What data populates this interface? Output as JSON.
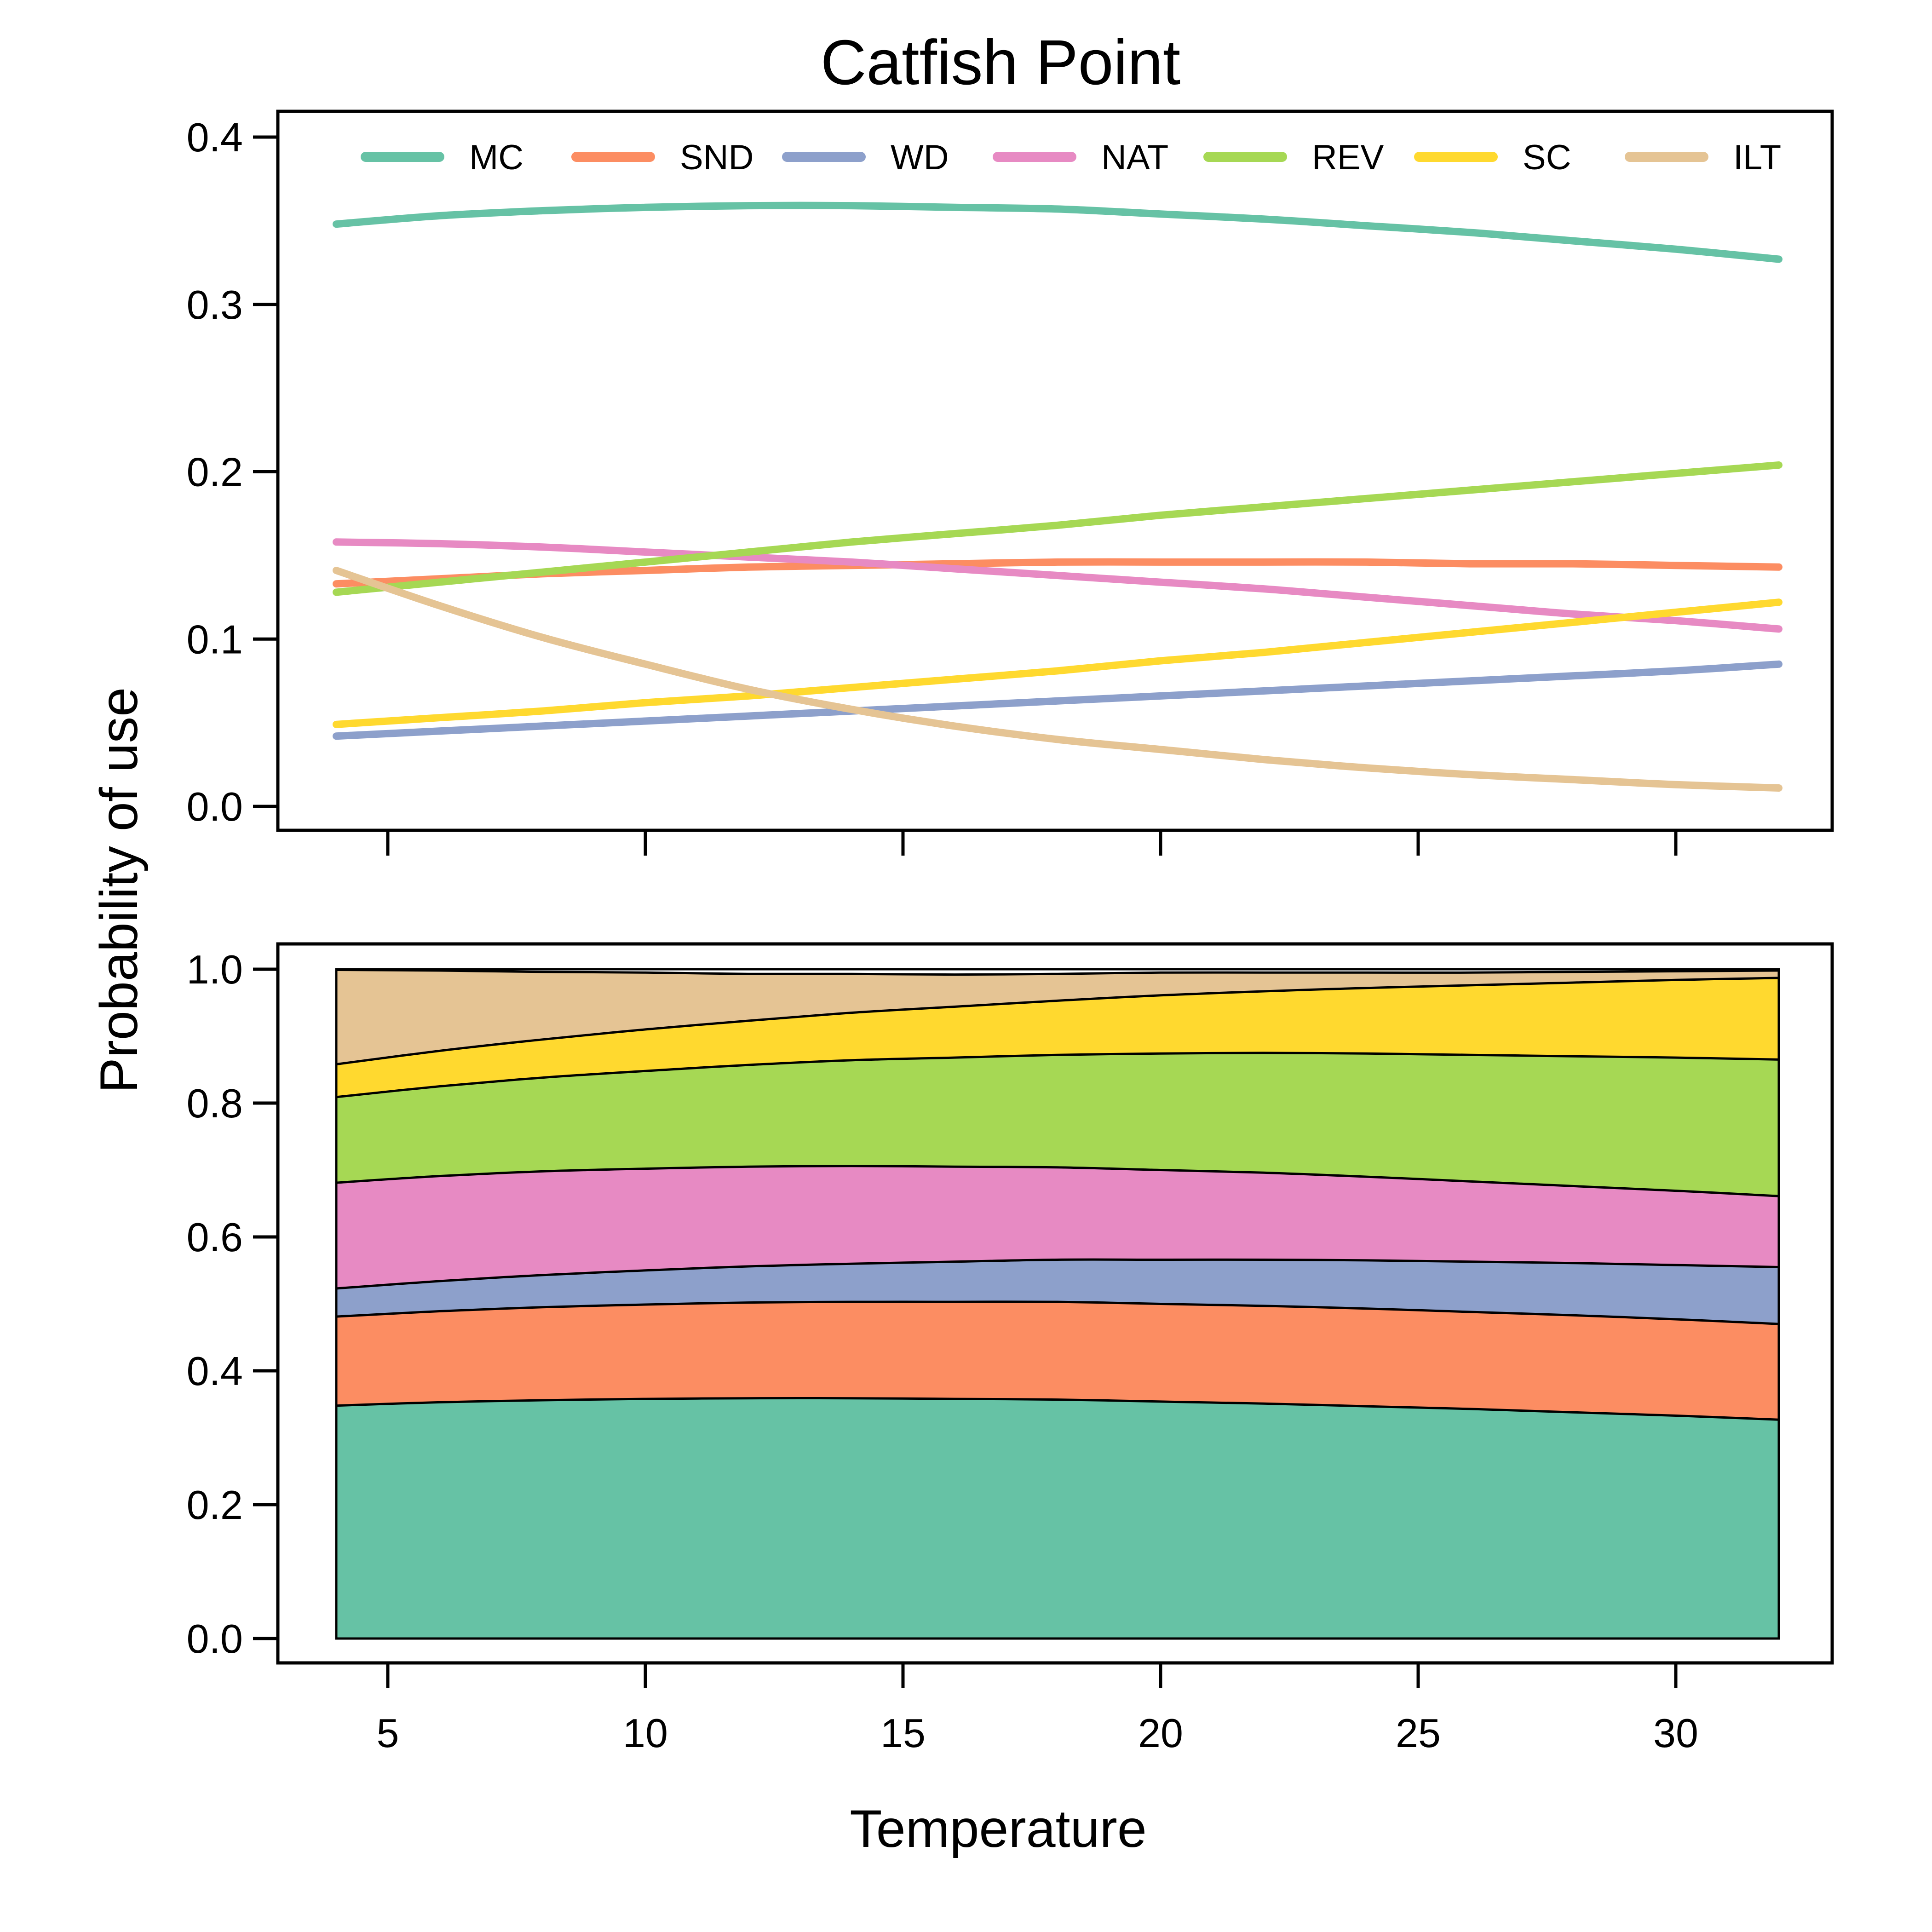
{
  "chart_data": {
    "type": "line",
    "title": "Catfish Point",
    "xlabel": "Temperature",
    "ylabel": "Probability of use",
    "x_ticks": [
      5,
      10,
      15,
      20,
      25,
      30
    ],
    "x": [
      4,
      6,
      8,
      10,
      12,
      14,
      16,
      18,
      20,
      22,
      24,
      26,
      28,
      30,
      32
    ],
    "legend_placement": "top",
    "series": [
      {
        "name": "MC",
        "color": "#66C2A5",
        "values": [
          0.348,
          0.353,
          0.356,
          0.358,
          0.359,
          0.359,
          0.358,
          0.357,
          0.354,
          0.351,
          0.347,
          0.343,
          0.338,
          0.333,
          0.327
        ]
      },
      {
        "name": "SND",
        "color": "#FC8D62",
        "values": [
          0.133,
          0.136,
          0.139,
          0.141,
          0.143,
          0.144,
          0.145,
          0.146,
          0.146,
          0.146,
          0.146,
          0.145,
          0.145,
          0.144,
          0.143
        ]
      },
      {
        "name": "WD",
        "color": "#8DA0CB",
        "values": [
          0.042,
          0.045,
          0.048,
          0.051,
          0.054,
          0.057,
          0.06,
          0.063,
          0.066,
          0.069,
          0.072,
          0.075,
          0.078,
          0.081,
          0.085
        ]
      },
      {
        "name": "NAT",
        "color": "#E78AC3",
        "values": [
          0.158,
          0.157,
          0.155,
          0.152,
          0.149,
          0.146,
          0.142,
          0.138,
          0.134,
          0.13,
          0.125,
          0.12,
          0.115,
          0.111,
          0.106
        ]
      },
      {
        "name": "REV",
        "color": "#A6D854",
        "values": [
          0.128,
          0.134,
          0.14,
          0.146,
          0.152,
          0.158,
          0.163,
          0.168,
          0.174,
          0.179,
          0.184,
          0.189,
          0.194,
          0.199,
          0.204
        ]
      },
      {
        "name": "SC",
        "color": "#FFD92F",
        "values": [
          0.049,
          0.053,
          0.057,
          0.062,
          0.066,
          0.071,
          0.076,
          0.081,
          0.087,
          0.092,
          0.098,
          0.104,
          0.11,
          0.116,
          0.122
        ]
      },
      {
        "name": "ILT",
        "color": "#E5C494",
        "values": [
          0.141,
          0.12,
          0.101,
          0.085,
          0.07,
          0.058,
          0.048,
          0.04,
          0.034,
          0.028,
          0.023,
          0.019,
          0.016,
          0.013,
          0.011
        ]
      }
    ],
    "panels": [
      {
        "id": "lines",
        "type": "line",
        "ylim": [
          0,
          0.4
        ],
        "xlim": [
          4,
          32
        ],
        "y_ticks": [
          "0.0",
          "0.1",
          "0.2",
          "0.3",
          "0.4"
        ]
      },
      {
        "id": "stacked",
        "type": "area",
        "stacked": true,
        "ylim": [
          0,
          1
        ],
        "xlim": [
          4,
          32
        ],
        "y_ticks": [
          "0.0",
          "0.2",
          "0.4",
          "0.6",
          "0.8",
          "1.0"
        ]
      }
    ],
    "grid": false
  }
}
